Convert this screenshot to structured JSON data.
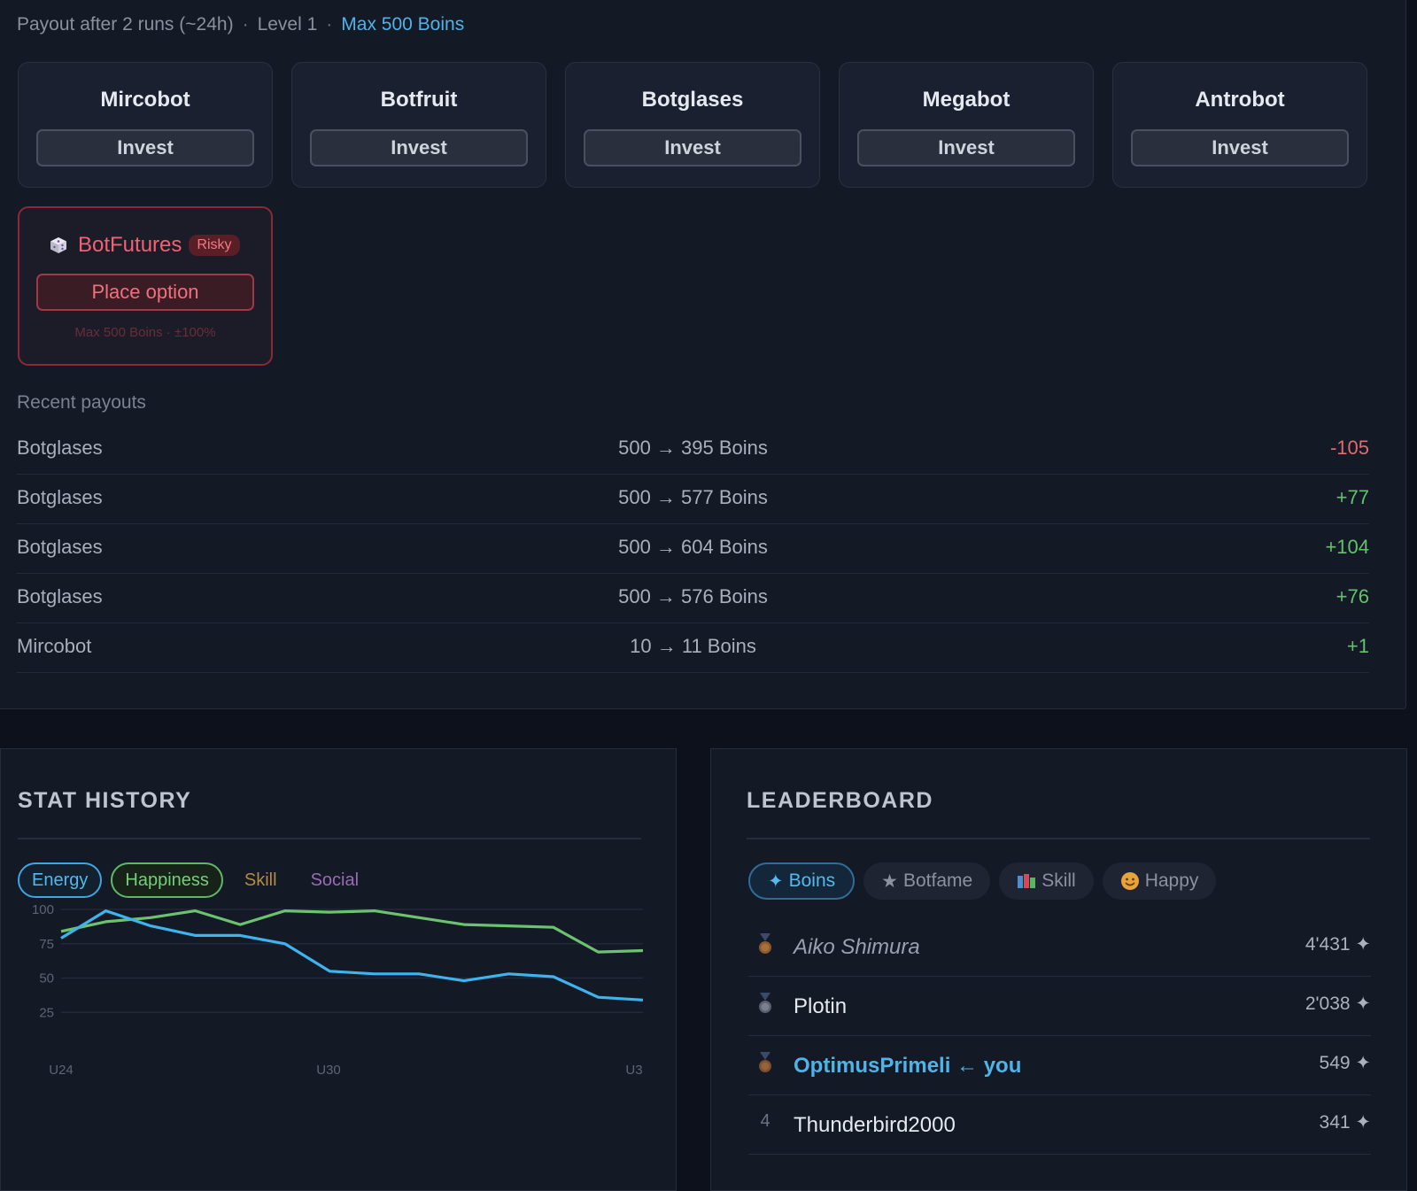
{
  "header": {
    "payout": "Payout after 2 runs (~24h)",
    "level": "Level 1",
    "max": "Max 500 Boins"
  },
  "bots": [
    {
      "name": "Mircobot",
      "button": "Invest"
    },
    {
      "name": "Botfruit",
      "button": "Invest"
    },
    {
      "name": "Botglases",
      "button": "Invest"
    },
    {
      "name": "Megabot",
      "button": "Invest"
    },
    {
      "name": "Antrobot",
      "button": "Invest"
    }
  ],
  "futures": {
    "icon": "dice-icon",
    "name": "BotFutures",
    "badge": "Risky",
    "button": "Place option",
    "note": "Max 500 Boins · ±100%"
  },
  "recent": {
    "label": "Recent payouts",
    "rows": [
      {
        "bot": "Botglases",
        "flow": "500 → 395 Boins",
        "delta": "-105",
        "sign": "neg"
      },
      {
        "bot": "Botglases",
        "flow": "500 → 577 Boins",
        "delta": "+77",
        "sign": "pos"
      },
      {
        "bot": "Botglases",
        "flow": "500 → 604 Boins",
        "delta": "+104",
        "sign": "pos"
      },
      {
        "bot": "Botglases",
        "flow": "500 → 576 Boins",
        "delta": "+76",
        "sign": "pos"
      },
      {
        "bot": "Mircobot",
        "flow": "10 → 11 Boins",
        "delta": "+1",
        "sign": "pos"
      }
    ]
  },
  "stat_history": {
    "title": "STAT HISTORY",
    "tabs": [
      "Energy",
      "Happiness",
      "Skill",
      "Social"
    ]
  },
  "chart_data": {
    "type": "line",
    "x_ticks": [
      "U24",
      "U30",
      "U3"
    ],
    "y_ticks": [
      100,
      75,
      50,
      25
    ],
    "ylim": [
      0,
      100
    ],
    "series": [
      {
        "name": "Happiness",
        "color": "#6cc26f",
        "values": [
          84,
          91,
          94,
          99,
          89,
          99,
          98,
          99,
          94,
          89,
          88,
          87,
          69,
          70
        ]
      },
      {
        "name": "Energy",
        "color": "#3db4ee",
        "values": [
          79,
          99,
          88,
          81,
          81,
          75,
          55,
          53,
          53,
          48,
          53,
          51,
          36,
          34
        ]
      }
    ]
  },
  "leaderboard": {
    "title": "LEADERBOARD",
    "tabs": [
      {
        "label": "Boins",
        "icon": "sparkle-icon",
        "active": true
      },
      {
        "label": "Botfame",
        "icon": "star-icon",
        "active": false
      },
      {
        "label": "Skill",
        "icon": "books-icon",
        "active": false
      },
      {
        "label": "Happy",
        "icon": "smiley-icon",
        "active": false
      }
    ],
    "rows": [
      {
        "rank": "1",
        "medal": "bronze-medal-icon",
        "name": "Aiko Shimura",
        "score": "4'431 ✦",
        "style": "italic"
      },
      {
        "rank": "2",
        "medal": "silver-medal-icon",
        "name": "Plotin",
        "score": "2'038 ✦",
        "style": "normal"
      },
      {
        "rank": "3",
        "medal": "bronze-medal-icon",
        "name": "OptimusPrimeli ← you",
        "score": "549 ✦",
        "style": "you"
      },
      {
        "rank": "4",
        "medal": "",
        "name": "Thunderbird2000",
        "score": "341 ✦",
        "style": "normal"
      }
    ]
  },
  "colors": {
    "accent": "#4fb3e8",
    "danger": "#f06272",
    "positive": "#5fc46a",
    "negative": "#e26a6a"
  }
}
